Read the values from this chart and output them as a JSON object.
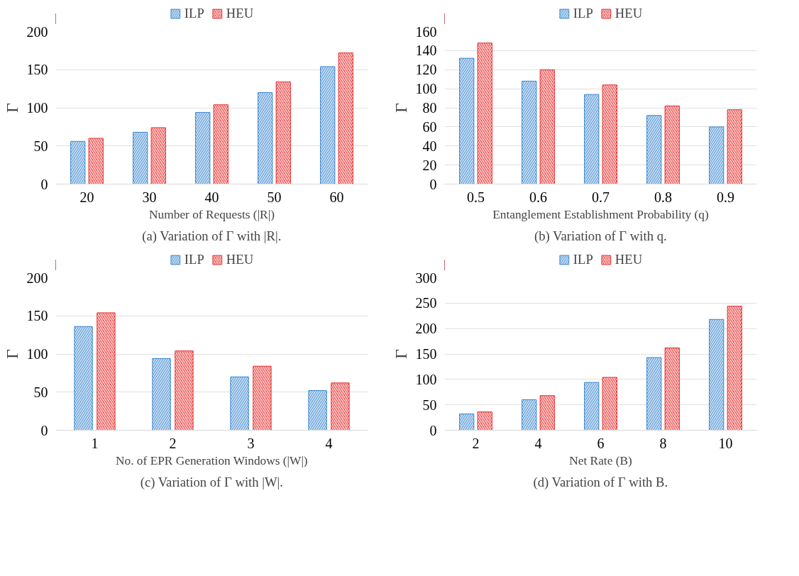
{
  "chart_data": [
    {
      "type": "bar",
      "xlabel": "Number of Requests (|R|)",
      "ylabel": "Γ",
      "categories": [
        "20",
        "30",
        "40",
        "50",
        "60"
      ],
      "ylim": [
        0,
        200
      ],
      "yticks": [
        0,
        50,
        100,
        150,
        200
      ],
      "grid": "y",
      "legend": "top",
      "annotations": [
        "(a) Variation of Γ with |R|."
      ],
      "series": [
        {
          "name": "ILP",
          "color": "#3b87cf",
          "values": [
            56,
            68,
            94,
            120,
            154
          ]
        },
        {
          "name": "HEU",
          "color": "#e8302f",
          "values": [
            60,
            74,
            104,
            134,
            172
          ]
        }
      ]
    },
    {
      "type": "bar",
      "xlabel": "Entanglement Establishment Probability (q)",
      "ylabel": "Γ",
      "categories": [
        "0.5",
        "0.6",
        "0.7",
        "0.8",
        "0.9"
      ],
      "ylim": [
        0,
        160
      ],
      "yticks": [
        0,
        20,
        40,
        60,
        80,
        100,
        120,
        140,
        160
      ],
      "grid": "y",
      "legend": "top",
      "annotations": [
        "(b) Variation of Γ with q."
      ],
      "series": [
        {
          "name": "ILP",
          "color": "#3b87cf",
          "values": [
            132,
            108,
            94,
            72,
            60
          ]
        },
        {
          "name": "HEU",
          "color": "#e8302f",
          "values": [
            148,
            120,
            104,
            82,
            78
          ]
        }
      ]
    },
    {
      "type": "bar",
      "xlabel": "No. of EPR Generation Windows (|W|)",
      "ylabel": "Γ",
      "categories": [
        "1",
        "2",
        "3",
        "4"
      ],
      "ylim": [
        0,
        200
      ],
      "yticks": [
        0,
        50,
        100,
        150,
        200
      ],
      "grid": "y",
      "legend": "top",
      "annotations": [
        "(c) Variation of Γ with |W|."
      ],
      "series": [
        {
          "name": "ILP",
          "color": "#3b87cf",
          "values": [
            136,
            94,
            70,
            52
          ]
        },
        {
          "name": "HEU",
          "color": "#e8302f",
          "values": [
            154,
            104,
            84,
            62
          ]
        }
      ]
    },
    {
      "type": "bar",
      "xlabel": "Net Rate (B)",
      "ylabel": "Γ",
      "categories": [
        "2",
        "4",
        "6",
        "8",
        "10"
      ],
      "ylim": [
        0,
        300
      ],
      "yticks": [
        0,
        50,
        100,
        150,
        200,
        250,
        300
      ],
      "grid": "y",
      "legend": "top",
      "annotations": [
        "(d) Variation of Γ with B."
      ],
      "series": [
        {
          "name": "ILP",
          "color": "#3b87cf",
          "values": [
            32,
            60,
            94,
            143,
            218
          ]
        },
        {
          "name": "HEU",
          "color": "#e8302f",
          "values": [
            36,
            68,
            104,
            162,
            244
          ]
        }
      ]
    }
  ]
}
